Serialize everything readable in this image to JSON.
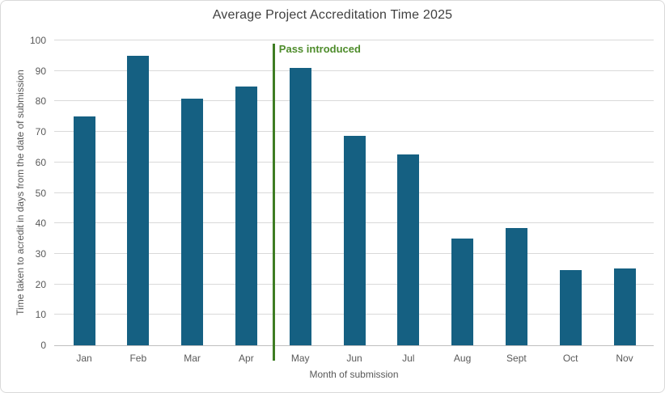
{
  "window": {
    "background": "#ffffff",
    "border_color": "#d9d9d9"
  },
  "chart_data": {
    "type": "bar",
    "title": "Average Project Accreditation Time 2025",
    "xlabel": "Month of submission",
    "ylabel": "Time taken to acredit in days from the date of submission",
    "categories": [
      "Jan",
      "Feb",
      "Mar",
      "Apr",
      "May",
      "Jun",
      "Jul",
      "Aug",
      "Sept",
      "Oct",
      "Nov"
    ],
    "values": [
      75,
      95,
      81,
      85,
      91,
      68.7,
      62.5,
      35,
      38.5,
      24.7,
      25.1
    ],
    "ylim": [
      0,
      100
    ],
    "ytick_step": 10,
    "grid": "horizontal",
    "legend": "none",
    "bar_color": "#156082",
    "gridline_color": "#d9d9d9",
    "axis_line_color": "#bfbfbf",
    "tick_label_color": "#595959",
    "title_color": "#404040",
    "annotation": {
      "label": "Pass introduced",
      "position_between": [
        "Apr",
        "May"
      ],
      "line_color": "#3e7d23",
      "text_color": "#4e8c2b"
    }
  }
}
